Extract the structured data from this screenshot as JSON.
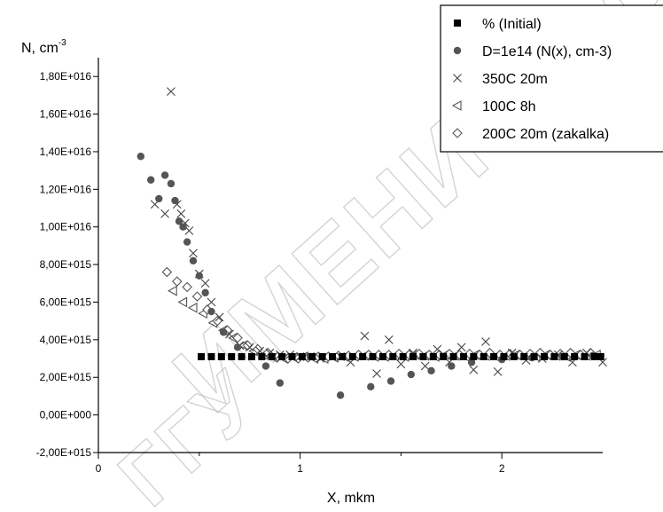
{
  "watermark": {
    "text": "ИМЕНИ Ф. СКОРИНЫ",
    "text2": "ГГУ"
  },
  "chart_data": {
    "type": "scatter",
    "title": "",
    "xlabel": "X, mkm",
    "ylabel_base": "N, cm",
    "ylabel_exp": "-3",
    "xlim": [
      0,
      2.5
    ],
    "ylim": [
      -2000000000000000.0,
      1.9e+16
    ],
    "x_ticks": [
      {
        "value": 0,
        "label": "0"
      },
      {
        "value": 1,
        "label": "1"
      },
      {
        "value": 2,
        "label": "2"
      }
    ],
    "x_minor_ticks": [
      0.5,
      1.5
    ],
    "y_ticks": [
      {
        "value": -2000000000000000.0,
        "label": "-2,00E+015"
      },
      {
        "value": 0,
        "label": "0,00E+000"
      },
      {
        "value": 2000000000000000.0,
        "label": "2,00E+015"
      },
      {
        "value": 4000000000000000.0,
        "label": "4,00E+015"
      },
      {
        "value": 6000000000000000.0,
        "label": "6,00E+015"
      },
      {
        "value": 8000000000000000.0,
        "label": "8,00E+015"
      },
      {
        "value": 1e+16,
        "label": "1,00E+016"
      },
      {
        "value": 1.2e+16,
        "label": "1,20E+016"
      },
      {
        "value": 1.4e+16,
        "label": "1,40E+016"
      },
      {
        "value": 1.6e+16,
        "label": "1,60E+016"
      },
      {
        "value": 1.8e+16,
        "label": "1,80E+016"
      }
    ],
    "grid": false,
    "legend_position": "top-right",
    "series": [
      {
        "name": "% (Initial)",
        "marker": "square",
        "color": "#000000",
        "x": [
          0.51,
          0.56,
          0.61,
          0.66,
          0.71,
          0.76,
          0.81,
          0.86,
          0.91,
          0.96,
          1.01,
          1.06,
          1.11,
          1.16,
          1.21,
          1.26,
          1.31,
          1.36,
          1.41,
          1.46,
          1.51,
          1.56,
          1.61,
          1.66,
          1.71,
          1.76,
          1.81,
          1.86,
          1.91,
          1.96,
          2.01,
          2.06,
          2.11,
          2.16,
          2.21,
          2.26,
          2.31,
          2.36,
          2.41,
          2.46,
          2.49
        ],
        "y": [
          3100000000000000.0,
          3100000000000000.0,
          3100000000000000.0,
          3100000000000000.0,
          3100000000000000.0,
          3100000000000000.0,
          3100000000000000.0,
          3100000000000000.0,
          3100000000000000.0,
          3100000000000000.0,
          3100000000000000.0,
          3100000000000000.0,
          3100000000000000.0,
          3100000000000000.0,
          3100000000000000.0,
          3100000000000000.0,
          3100000000000000.0,
          3100000000000000.0,
          3100000000000000.0,
          3100000000000000.0,
          3100000000000000.0,
          3100000000000000.0,
          3100000000000000.0,
          3100000000000000.0,
          3100000000000000.0,
          3100000000000000.0,
          3100000000000000.0,
          3100000000000000.0,
          3100000000000000.0,
          3100000000000000.0,
          3100000000000000.0,
          3100000000000000.0,
          3100000000000000.0,
          3100000000000000.0,
          3100000000000000.0,
          3100000000000000.0,
          3100000000000000.0,
          3100000000000000.0,
          3100000000000000.0,
          3100000000000000.0,
          3100000000000000.0
        ]
      },
      {
        "name": "D=1e14 (N(x), cm-3)",
        "marker": "circle",
        "color": "#555555",
        "x": [
          0.21,
          0.26,
          0.3,
          0.33,
          0.36,
          0.38,
          0.4,
          0.42,
          0.44,
          0.47,
          0.5,
          0.53,
          0.56,
          0.62,
          0.69,
          0.76,
          0.83,
          0.9,
          1.05,
          1.2,
          1.35,
          1.45,
          1.55,
          1.65,
          1.75,
          1.85,
          2.0,
          2.15,
          2.3,
          2.45
        ],
        "y": [
          1.375e+16,
          1.25e+16,
          1.15e+16,
          1.275e+16,
          1.23e+16,
          1.14e+16,
          1.03e+16,
          1e+16,
          9200000000000000.0,
          8200000000000000.0,
          7400000000000000.0,
          6500000000000000.0,
          5500000000000000.0,
          4400000000000000.0,
          3600000000000000.0,
          3100000000000000.0,
          2600000000000000.0,
          1700000000000000.0,
          3100000000000000.0,
          1050000000000000.0,
          1500000000000000.0,
          1800000000000000.0,
          2150000000000000.0,
          2350000000000000.0,
          2600000000000000.0,
          2800000000000000.0,
          2950000000000000.0,
          3050000000000000.0,
          3100000000000000.0,
          3150000000000000.0
        ]
      },
      {
        "name": "350C 20m",
        "marker": "x",
        "color": "#444444",
        "x": [
          0.28,
          0.33,
          0.36,
          0.39,
          0.41,
          0.43,
          0.45,
          0.47,
          0.5,
          0.53,
          0.56,
          0.6,
          0.65,
          0.7,
          0.75,
          0.8,
          0.85,
          0.9,
          0.95,
          1.0,
          1.05,
          1.1,
          1.2,
          1.25,
          1.32,
          1.38,
          1.44,
          1.5,
          1.56,
          1.62,
          1.68,
          1.74,
          1.8,
          1.86,
          1.92,
          1.98,
          2.05,
          2.12,
          2.2,
          2.28,
          2.35,
          2.42,
          2.5
        ],
        "y": [
          1.12e+16,
          1.07e+16,
          1.72e+16,
          1.12e+16,
          1.07e+16,
          1.02e+16,
          9800000000000000.0,
          8600000000000000.0,
          7500000000000000.0,
          7000000000000000.0,
          6000000000000000.0,
          5200000000000000.0,
          4300000000000000.0,
          3700000000000000.0,
          3600000000000000.0,
          3400000000000000.0,
          3300000000000000.0,
          3200000000000000.0,
          3200000000000000.0,
          3100000000000000.0,
          3100000000000000.0,
          3000000000000000.0,
          3100000000000000.0,
          2800000000000000.0,
          4200000000000000.0,
          2200000000000000.0,
          4000000000000000.0,
          2700000000000000.0,
          3300000000000000.0,
          2600000000000000.0,
          3500000000000000.0,
          2800000000000000.0,
          3600000000000000.0,
          2400000000000000.0,
          3900000000000000.0,
          2300000000000000.0,
          3300000000000000.0,
          2900000000000000.0,
          3000000000000000.0,
          3200000000000000.0,
          2800000000000000.0,
          3300000000000000.0,
          2800000000000000.0
        ]
      },
      {
        "name": "100C  8h",
        "marker": "triangle-left",
        "color": "#555555",
        "x": [
          0.37,
          0.42,
          0.47,
          0.52,
          0.57,
          0.62,
          0.67,
          0.72,
          0.77,
          0.82,
          0.87,
          0.92,
          0.97,
          1.02,
          1.07,
          1.12,
          1.17,
          1.22,
          1.27,
          1.32,
          1.37,
          1.42,
          1.47,
          1.52,
          1.57,
          1.62,
          1.67,
          1.72,
          1.77,
          1.82,
          1.87,
          1.92,
          1.97,
          2.02,
          2.07,
          2.12,
          2.17,
          2.22,
          2.27,
          2.32,
          2.37,
          2.42,
          2.47
        ],
        "y": [
          6600000000000000.0,
          6000000000000000.0,
          5700000000000000.0,
          5400000000000000.0,
          4900000000000000.0,
          4500000000000000.0,
          4100000000000000.0,
          3700000000000000.0,
          3400000000000000.0,
          3200000000000000.0,
          3050000000000000.0,
          3000000000000000.0,
          3050000000000000.0,
          3100000000000000.0,
          3000000000000000.0,
          3000000000000000.0,
          3050000000000000.0,
          3100000000000000.0,
          3100000000000000.0,
          3150000000000000.0,
          3100000000000000.0,
          3100000000000000.0,
          3150000000000000.0,
          3100000000000000.0,
          3200000000000000.0,
          3150000000000000.0,
          3100000000000000.0,
          3200000000000000.0,
          3150000000000000.0,
          3100000000000000.0,
          3200000000000000.0,
          3150000000000000.0,
          3100000000000000.0,
          3150000000000000.0,
          3200000000000000.0,
          3150000000000000.0,
          3100000000000000.0,
          3200000000000000.0,
          3150000000000000.0,
          3100000000000000.0,
          3200000000000000.0,
          3150000000000000.0,
          3200000000000000.0
        ]
      },
      {
        "name": "200C 20m (zakalka)",
        "marker": "diamond",
        "color": "#555555",
        "x": [
          0.34,
          0.39,
          0.44,
          0.49,
          0.54,
          0.59,
          0.64,
          0.69,
          0.74,
          0.79,
          0.84,
          0.89,
          0.94,
          0.99,
          1.04,
          1.09,
          1.14,
          1.19,
          1.24,
          1.29,
          1.34,
          1.39,
          1.44,
          1.49,
          1.54,
          1.59,
          1.64,
          1.69,
          1.74,
          1.79,
          1.84,
          1.89,
          1.94,
          1.99,
          2.04,
          2.09,
          2.14,
          2.19,
          2.24,
          2.29,
          2.34,
          2.39,
          2.44
        ],
        "y": [
          7600000000000000.0,
          7100000000000000.0,
          6800000000000000.0,
          6300000000000000.0,
          5600000000000000.0,
          5000000000000000.0,
          4500000000000000.0,
          4100000000000000.0,
          3700000000000000.0,
          3500000000000000.0,
          3300000000000000.0,
          3100000000000000.0,
          3000000000000000.0,
          3000000000000000.0,
          3050000000000000.0,
          3100000000000000.0,
          3100000000000000.0,
          3150000000000000.0,
          3150000000000000.0,
          3200000000000000.0,
          3200000000000000.0,
          3200000000000000.0,
          3200000000000000.0,
          3250000000000000.0,
          3200000000000000.0,
          3250000000000000.0,
          3200000000000000.0,
          3200000000000000.0,
          3250000000000000.0,
          3200000000000000.0,
          3250000000000000.0,
          3200000000000000.0,
          3300000000000000.0,
          3200000000000000.0,
          3250000000000000.0,
          3200000000000000.0,
          3250000000000000.0,
          3300000000000000.0,
          3200000000000000.0,
          3250000000000000.0,
          3300000000000000.0,
          3200000000000000.0,
          3300000000000000.0
        ]
      }
    ]
  }
}
